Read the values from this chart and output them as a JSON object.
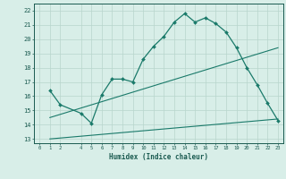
{
  "line1_x": [
    1,
    2,
    4,
    5,
    6,
    7,
    8,
    9,
    10,
    11,
    12,
    13,
    14,
    15,
    16,
    17,
    18,
    19,
    20,
    21,
    22,
    23
  ],
  "line1_y": [
    16.4,
    15.4,
    14.8,
    14.1,
    16.1,
    17.2,
    17.2,
    17.0,
    18.6,
    19.5,
    20.2,
    21.2,
    21.8,
    21.2,
    21.5,
    21.1,
    20.5,
    19.4,
    18.0,
    16.8,
    15.5,
    14.3
  ],
  "line2_x": [
    1,
    23
  ],
  "line2_y": [
    14.5,
    19.4
  ],
  "line3_x": [
    1,
    23
  ],
  "line3_y": [
    13.0,
    14.4
  ],
  "line_color": "#1a7a6a",
  "bg_color": "#d8eee8",
  "grid_color": "#b8d5cc",
  "tick_label_color": "#1a5a50",
  "xlabel": "Humidex (Indice chaleur)",
  "ylabel_ticks": [
    13,
    14,
    15,
    16,
    17,
    18,
    19,
    20,
    21,
    22
  ],
  "xlim": [
    -0.5,
    23.5
  ],
  "ylim": [
    12.7,
    22.5
  ],
  "xticks": [
    0,
    1,
    2,
    4,
    5,
    6,
    7,
    8,
    9,
    10,
    11,
    12,
    13,
    14,
    15,
    16,
    17,
    18,
    19,
    20,
    21,
    22,
    23
  ],
  "xtick_labels": [
    "0",
    "1",
    "2",
    "4",
    "5",
    "6",
    "7",
    "8",
    "9",
    "10",
    "11",
    "12",
    "13",
    "14",
    "15",
    "16",
    "17",
    "18",
    "19",
    "20",
    "21",
    "22",
    "23"
  ]
}
